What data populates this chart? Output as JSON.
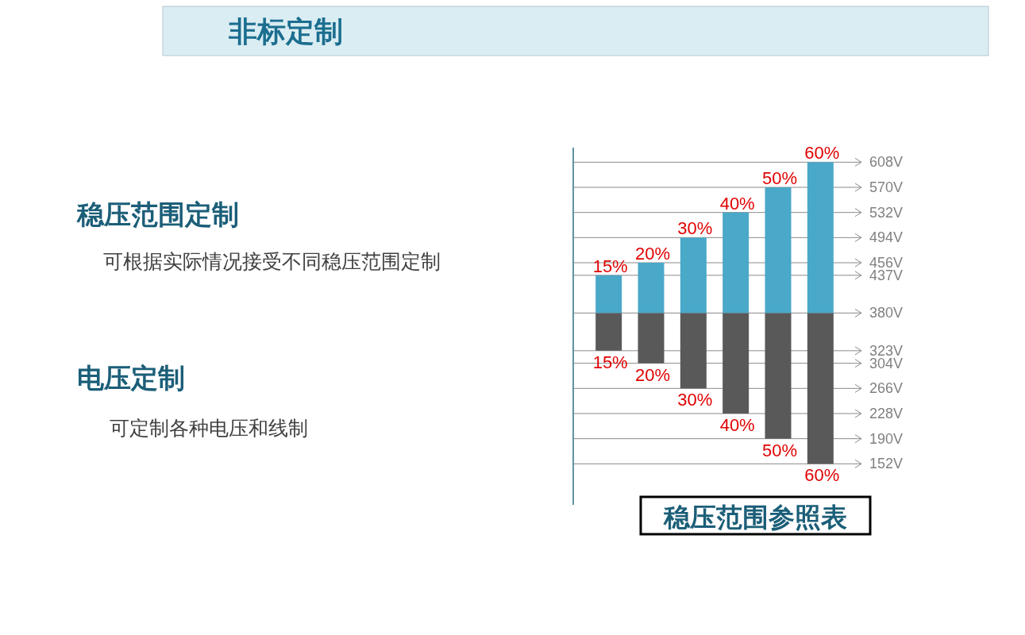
{
  "chart_data": {
    "type": "bar",
    "title": "非标定制",
    "xlabel": "稳压范围参照表",
    "annotations": [
      "稳压范围定制",
      "可根据实际情况接受不同稳压范围定制",
      "电压定制",
      "可定制各种电压和线制",
      {
        "text": "15%",
        "y": 437
      },
      {
        "text": "20%",
        "y": 456
      },
      {
        "text": "30%",
        "y": 494
      },
      {
        "text": "40%",
        "y": 532
      },
      {
        "text": "50%",
        "y": 570
      },
      {
        "text": "60%",
        "y": 608
      },
      {
        "text": "15%",
        "y": 323
      },
      {
        "text": "20%",
        "y": 304
      },
      {
        "text": "30%",
        "y": 266
      },
      {
        "text": "40%",
        "y": 228
      },
      {
        "text": "50%",
        "y": 190
      },
      {
        "text": "60%",
        "y": 152
      }
    ],
    "categories": [
      null,
      null,
      null,
      null,
      null,
      null
    ],
    "series": [
      {
        "color": "#595959",
        "base": [
          323,
          304,
          266,
          228,
          190,
          152
        ],
        "values": [
          57,
          76,
          114,
          152,
          190,
          228
        ]
      },
      {
        "color": "#4aa8c8",
        "base": [
          380,
          380,
          380,
          380,
          380,
          380
        ],
        "values": [
          57,
          76,
          114,
          152,
          190,
          228
        ]
      }
    ],
    "ylim": [
      90,
      630
    ],
    "yticks": [
      {
        "value": 152,
        "label": "152V"
      },
      {
        "value": 190,
        "label": "190V"
      },
      {
        "value": 228,
        "label": "228V"
      },
      {
        "value": 266,
        "label": "266V"
      },
      {
        "value": 304,
        "label": "304V"
      },
      {
        "value": 323,
        "label": "323V"
      },
      {
        "value": 380,
        "label": "380V"
      },
      {
        "value": 437,
        "label": "437V"
      },
      {
        "value": 456,
        "label": "456V"
      },
      {
        "value": 494,
        "label": "494V"
      },
      {
        "value": 532,
        "label": "532V"
      },
      {
        "value": 570,
        "label": "570V"
      },
      {
        "value": 608,
        "label": "608V"
      }
    ],
    "grid": "y",
    "tick_labels": "y"
  }
}
